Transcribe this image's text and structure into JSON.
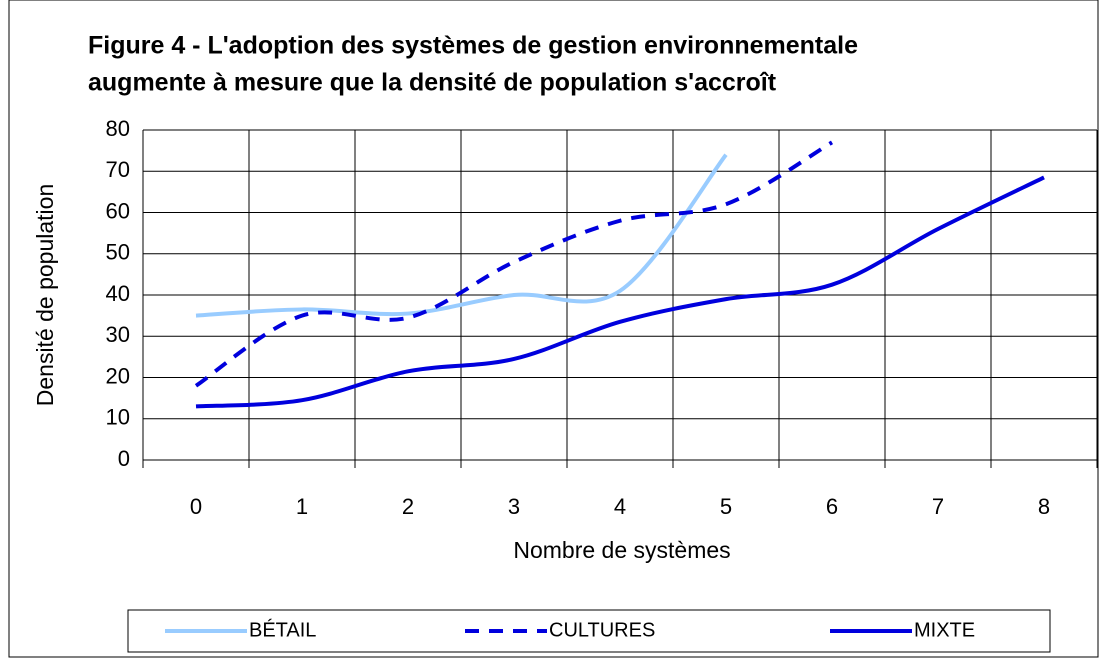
{
  "chart_data": {
    "type": "line",
    "title": [
      "Figure 4 - L'adoption des systèmes de gestion environnementale",
      "augmente à mesure que la densité de population s'accroît"
    ],
    "x_label": "Nombre de systèmes",
    "y_label": "Densité de population",
    "categories": [
      "0",
      "1",
      "2",
      "3",
      "4",
      "5",
      "6",
      "7",
      "8"
    ],
    "series": [
      {
        "name": "BÉTAIL",
        "color": "#99ccff",
        "dash": false,
        "values": [
          35,
          36.5,
          35.5,
          40,
          41,
          74,
          null,
          null,
          null
        ]
      },
      {
        "name": "CULTURES",
        "color": "#0000dd",
        "dash": true,
        "values": [
          18,
          35,
          34.5,
          48,
          58,
          62,
          77,
          null,
          null
        ]
      },
      {
        "name": "MIXTE",
        "color": "#0000dd",
        "dash": false,
        "values": [
          13,
          14.5,
          21.5,
          24.5,
          33.5,
          39,
          42.5,
          56,
          68.5
        ]
      }
    ],
    "ylim": [
      0,
      80
    ],
    "yticks": [
      0,
      10,
      20,
      30,
      40,
      50,
      60,
      70,
      80
    ],
    "grid": true,
    "legend": "bottom"
  }
}
